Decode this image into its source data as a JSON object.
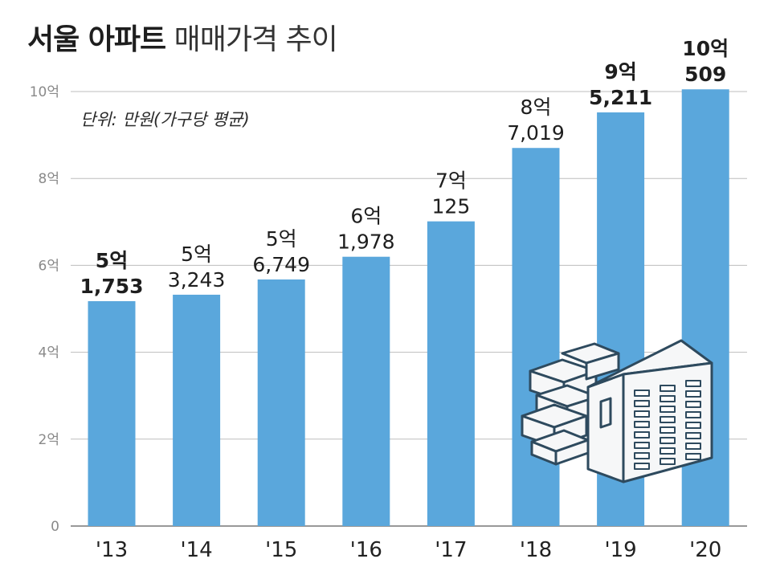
{
  "title_bold": "서울 아파트",
  "title_light": "매매가격 추이",
  "colors": {
    "bar": "#5aa7dc",
    "grid": "#bdbdbd",
    "text": "#1e1e1e",
    "illustration_fill": "#f6f7f8",
    "illustration_stroke": "#2e4a5e"
  },
  "chart_data": {
    "type": "bar",
    "title": "서울 아파트 매매가격 추이",
    "unit_note": "단위: 만원(가구당 평균)",
    "xlabel": "",
    "ylabel": "",
    "ylim": [
      0,
      10
    ],
    "y_unit": "억",
    "y_ticks": [
      0,
      2,
      4,
      6,
      8,
      10
    ],
    "y_tick_labels": [
      "0",
      "2억",
      "4억",
      "6억",
      "8억",
      "10억"
    ],
    "categories": [
      "'13",
      "'14",
      "'15",
      "'16",
      "'17",
      "'18",
      "'19",
      "'20"
    ],
    "values": [
      5.1753,
      5.3243,
      5.6749,
      6.1978,
      7.0125,
      8.7019,
      9.5211,
      10.0509
    ],
    "value_labels": [
      {
        "line1": "5억",
        "line2": "1,753",
        "bold": true
      },
      {
        "line1": "5억",
        "line2": "3,243",
        "bold": false
      },
      {
        "line1": "5억",
        "line2": "6,749",
        "bold": false
      },
      {
        "line1": "6억",
        "line2": "1,978",
        "bold": false
      },
      {
        "line1": "7억",
        "line2": "125",
        "bold": false
      },
      {
        "line1": "8억",
        "line2": "7,019",
        "bold": false
      },
      {
        "line1": "9억",
        "line2": "5,211",
        "bold": true
      },
      {
        "line1": "10억",
        "line2": "509",
        "bold": true
      }
    ],
    "grid": true,
    "legend": "none"
  },
  "illustration": {
    "icon": "apartment-building-icon"
  }
}
